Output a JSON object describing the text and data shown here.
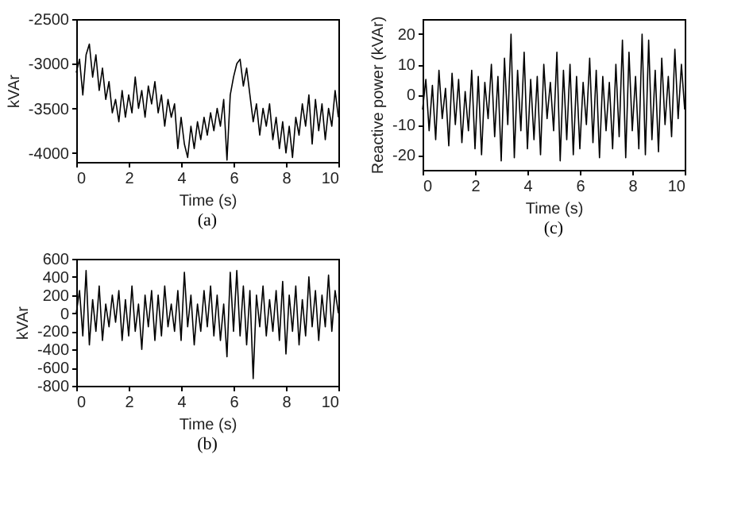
{
  "chart_data": [
    {
      "type": "line",
      "title": "(a)",
      "xlabel": "Time (s)",
      "ylabel": "kVAr",
      "xlim": [
        0,
        10
      ],
      "xticks": [
        0,
        2,
        4,
        6,
        8,
        10
      ],
      "ylim": [
        -4100,
        -2500
      ],
      "yticks": [
        -4000,
        -3500,
        -3000,
        -2500
      ],
      "grid": false,
      "line_style": "solid",
      "x": [
        0,
        0.125,
        0.25,
        0.375,
        0.5,
        0.625,
        0.75,
        0.875,
        1,
        1.125,
        1.25,
        1.375,
        1.5,
        1.625,
        1.75,
        1.875,
        2,
        2.125,
        2.25,
        2.375,
        2.5,
        2.625,
        2.75,
        2.875,
        3,
        3.125,
        3.25,
        3.375,
        3.5,
        3.625,
        3.75,
        3.875,
        4,
        4.125,
        4.25,
        4.375,
        4.5,
        4.625,
        4.75,
        4.875,
        5,
        5.125,
        5.25,
        5.375,
        5.5,
        5.625,
        5.75,
        5.875,
        6,
        6.125,
        6.25,
        6.375,
        6.5,
        6.625,
        6.75,
        6.875,
        7,
        7.125,
        7.25,
        7.375,
        7.5,
        7.625,
        7.75,
        7.875,
        8,
        8.125,
        8.25,
        8.375,
        8.5,
        8.625,
        8.75,
        8.875,
        9,
        9.125,
        9.25,
        9.375,
        9.5,
        9.625,
        9.75,
        9.875,
        10
      ],
      "series": [
        {
          "color": "#000000",
          "values": [
            -3100,
            -2950,
            -3350,
            -2900,
            -2780,
            -3150,
            -2900,
            -3300,
            -3050,
            -3400,
            -3200,
            -3550,
            -3400,
            -3650,
            -3300,
            -3600,
            -3350,
            -3550,
            -3150,
            -3500,
            -3300,
            -3600,
            -3250,
            -3450,
            -3200,
            -3550,
            -3350,
            -3700,
            -3400,
            -3600,
            -3450,
            -3950,
            -3600,
            -3900,
            -4050,
            -3700,
            -3950,
            -3650,
            -3850,
            -3600,
            -3800,
            -3550,
            -3750,
            -3500,
            -3700,
            -3400,
            -4080,
            -3350,
            -3150,
            -3000,
            -2950,
            -3250,
            -3050,
            -3350,
            -3650,
            -3450,
            -3800,
            -3500,
            -3700,
            -3450,
            -3850,
            -3600,
            -3950,
            -3650,
            -4000,
            -3700,
            -4050,
            -3600,
            -3800,
            -3450,
            -3700,
            -3350,
            -3900,
            -3400,
            -3750,
            -3450,
            -3850,
            -3500,
            -3700,
            -3300,
            -3600
          ]
        }
      ]
    },
    {
      "type": "line",
      "title": "(b)",
      "xlabel": "Time (s)",
      "ylabel": "kVAr",
      "xlim": [
        0,
        10
      ],
      "xticks": [
        0,
        2,
        4,
        6,
        8,
        10
      ],
      "ylim": [
        -800,
        600
      ],
      "yticks": [
        -800,
        -600,
        -400,
        -200,
        0,
        200,
        400,
        600
      ],
      "grid": false,
      "line_style": "solid",
      "x": [
        0,
        0.125,
        0.25,
        0.375,
        0.5,
        0.625,
        0.75,
        0.875,
        1,
        1.125,
        1.25,
        1.375,
        1.5,
        1.625,
        1.75,
        1.875,
        2,
        2.125,
        2.25,
        2.375,
        2.5,
        2.625,
        2.75,
        2.875,
        3,
        3.125,
        3.25,
        3.375,
        3.5,
        3.625,
        3.75,
        3.875,
        4,
        4.125,
        4.25,
        4.375,
        4.5,
        4.625,
        4.75,
        4.875,
        5,
        5.125,
        5.25,
        5.375,
        5.5,
        5.625,
        5.75,
        5.875,
        6,
        6.125,
        6.25,
        6.375,
        6.5,
        6.625,
        6.75,
        6.875,
        7,
        7.125,
        7.25,
        7.375,
        7.5,
        7.625,
        7.75,
        7.875,
        8,
        8.125,
        8.25,
        8.375,
        8.5,
        8.625,
        8.75,
        8.875,
        9,
        9.125,
        9.25,
        9.375,
        9.5,
        9.625,
        9.75,
        9.875,
        10
      ],
      "series": [
        {
          "color": "#000000",
          "values": [
            0,
            250,
            -250,
            470,
            -350,
            150,
            -200,
            300,
            -300,
            100,
            -150,
            200,
            -100,
            250,
            -300,
            150,
            -250,
            300,
            -200,
            100,
            -400,
            200,
            -150,
            250,
            -300,
            200,
            -250,
            300,
            -150,
            100,
            -200,
            250,
            -300,
            450,
            -150,
            200,
            -350,
            100,
            -200,
            250,
            -150,
            300,
            -250,
            200,
            -300,
            100,
            -480,
            450,
            -200,
            470,
            -250,
            300,
            -350,
            250,
            -720,
            200,
            -150,
            300,
            -250,
            150,
            -200,
            250,
            -300,
            350,
            -450,
            200,
            -200,
            300,
            -350,
            150,
            -250,
            400,
            -150,
            250,
            -300,
            200,
            -150,
            420,
            -200,
            250,
            0
          ]
        }
      ]
    },
    {
      "type": "line",
      "title": "(c)",
      "xlabel": "Time (s)",
      "ylabel": "Reactive power (kVAr)",
      "xlim": [
        0,
        10
      ],
      "xticks": [
        0,
        2,
        4,
        6,
        8,
        10
      ],
      "ylim": [
        -25,
        25
      ],
      "yticks": [
        -20,
        -10,
        0,
        10,
        20
      ],
      "grid": false,
      "line_style": "solid",
      "x": [
        0,
        0.125,
        0.25,
        0.375,
        0.5,
        0.625,
        0.75,
        0.875,
        1,
        1.125,
        1.25,
        1.375,
        1.5,
        1.625,
        1.75,
        1.875,
        2,
        2.125,
        2.25,
        2.375,
        2.5,
        2.625,
        2.75,
        2.875,
        3,
        3.125,
        3.25,
        3.375,
        3.5,
        3.625,
        3.75,
        3.875,
        4,
        4.125,
        4.25,
        4.375,
        4.5,
        4.625,
        4.75,
        4.875,
        5,
        5.125,
        5.25,
        5.375,
        5.5,
        5.625,
        5.75,
        5.875,
        6,
        6.125,
        6.25,
        6.375,
        6.5,
        6.625,
        6.75,
        6.875,
        7,
        7.125,
        7.25,
        7.375,
        7.5,
        7.625,
        7.75,
        7.875,
        8,
        8.125,
        8.25,
        8.375,
        8.5,
        8.625,
        8.75,
        8.875,
        9,
        9.125,
        9.25,
        9.375,
        9.5,
        9.625,
        9.75,
        9.875,
        10
      ],
      "series": [
        {
          "color": "#000000",
          "values": [
            -5,
            5,
            -12,
            3,
            -15,
            8,
            -8,
            2,
            -17,
            7,
            -10,
            5,
            -16,
            1,
            -12,
            8,
            -18,
            6,
            -20,
            4,
            -8,
            10,
            -14,
            6,
            -22,
            12,
            -10,
            20,
            -21,
            8,
            -12,
            14,
            -18,
            5,
            -15,
            6,
            -20,
            10,
            -8,
            4,
            -12,
            14,
            -22,
            8,
            -15,
            10,
            -20,
            6,
            -18,
            4,
            -10,
            12,
            -16,
            8,
            -21,
            6,
            -12,
            4,
            -18,
            10,
            -14,
            18,
            -21,
            14,
            -12,
            6,
            -18,
            20,
            -20,
            18,
            -15,
            8,
            -19,
            12,
            -10,
            6,
            -14,
            15,
            -8,
            10,
            -5
          ]
        }
      ]
    }
  ]
}
